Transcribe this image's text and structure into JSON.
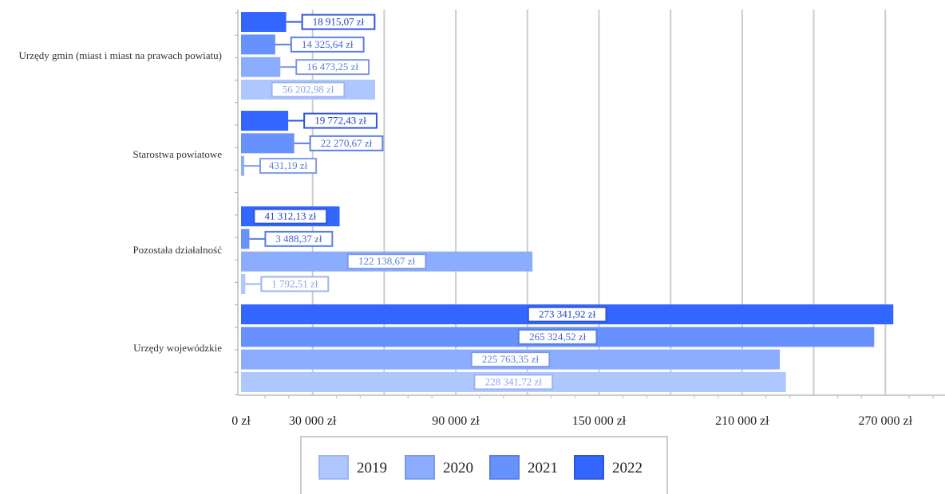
{
  "chart_data": {
    "type": "bar",
    "orientation": "horizontal",
    "categories": [
      "Urzędy gmin (miast i miast na prawach powiatu)",
      "Starostwa powiatowe",
      "Pozostała działalność",
      "Urzędy wojewódzkie"
    ],
    "series": [
      {
        "name": "2019",
        "values": [
          56202.98,
          null,
          1792.51,
          228341.72
        ],
        "labels": [
          "56 202,98 zł",
          "",
          "1 792,51 zł",
          "228 341,72 zł"
        ]
      },
      {
        "name": "2020",
        "values": [
          16473.25,
          431.19,
          122138.67,
          225763.35
        ],
        "labels": [
          "16 473,25 zł",
          "431,19 zł",
          "122 138,67 zł",
          "225 763,35 zł"
        ]
      },
      {
        "name": "2021",
        "values": [
          14325.64,
          22270.67,
          3488.37,
          265324.52
        ],
        "labels": [
          "14 325,64 zł",
          "22 270,67 zł",
          "3 488,37 zł",
          "265 324,52 zł"
        ]
      },
      {
        "name": "2022",
        "values": [
          18915.07,
          19772.43,
          41312.13,
          273341.92
        ],
        "labels": [
          "18 915,07 zł",
          "19 772,43 zł",
          "41 312,13 zł",
          "273 341,92 zł"
        ]
      }
    ],
    "x_ticks": [
      0,
      30000,
      90000,
      150000,
      210000,
      270000
    ],
    "x_tick_labels": [
      "0 zł",
      "30 000 zł",
      "90 000 zł",
      "150 000 zł",
      "210 000 zł",
      "270 000 zł"
    ],
    "xlim": [
      0,
      295000
    ],
    "grid": true,
    "legend_position": "bottom",
    "colors": {
      "2019": "#aec8ff",
      "2020": "#8cacfd",
      "2021": "#6791fc",
      "2022": "#3366ff"
    }
  }
}
